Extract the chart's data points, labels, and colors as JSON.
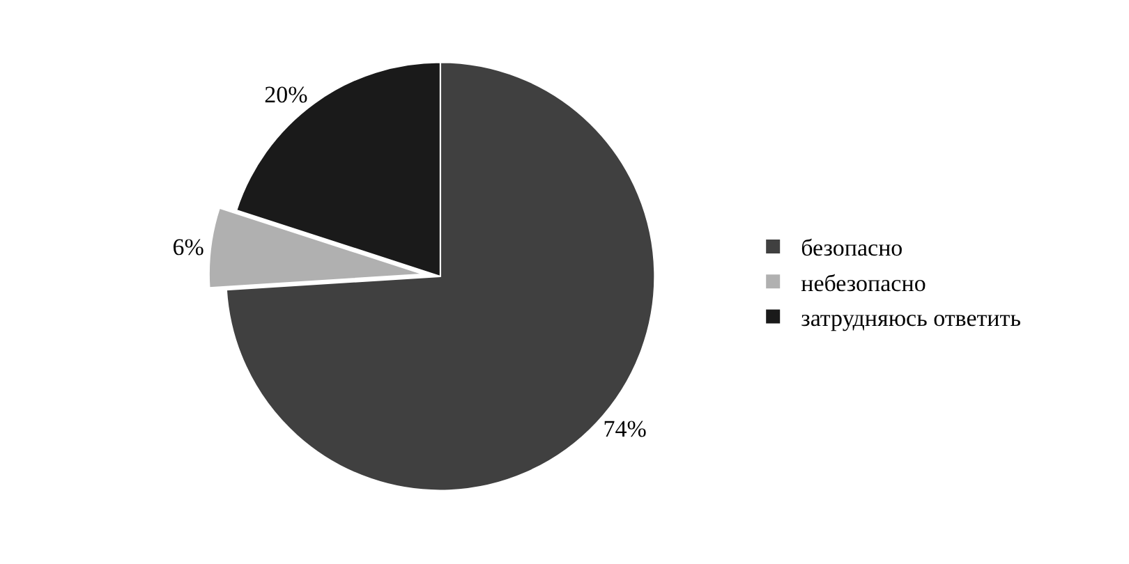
{
  "chart_data": {
    "type": "pie",
    "categories": [
      "безопасно",
      "небезопасно",
      "затрудняюсь ответить"
    ],
    "values": [
      74,
      6,
      20
    ],
    "value_labels": [
      "74%",
      "6%",
      "20%"
    ],
    "colors": [
      "#404040",
      "#b0b0b0",
      "#1a1a1a"
    ],
    "legend": "right"
  }
}
